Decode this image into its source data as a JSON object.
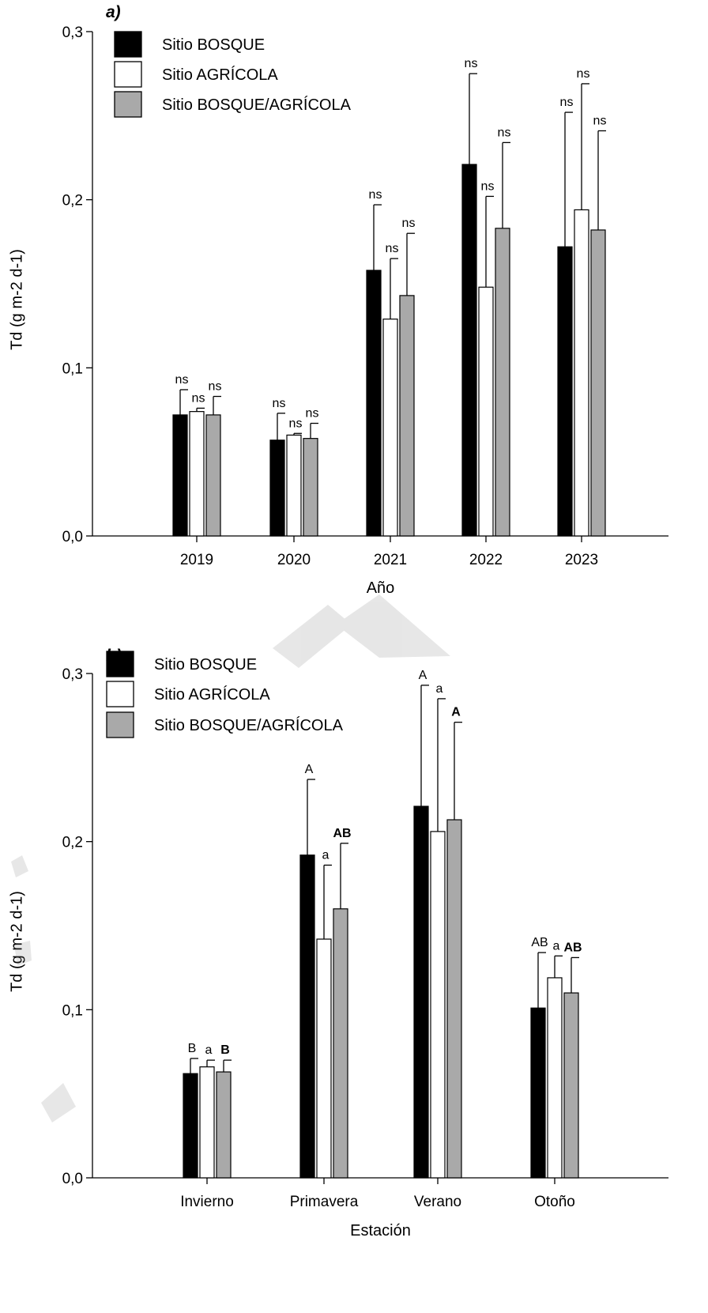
{
  "chart_data": [
    {
      "type": "bar",
      "panel": "a)",
      "xlabel": "Año",
      "ylabel": "Td (g m-2 d-1)",
      "ylim": [
        0,
        0.3
      ],
      "yticks": [
        "0,0",
        "0,1",
        "0,2",
        "0,3"
      ],
      "categories": [
        "2019",
        "2020",
        "2021",
        "2022",
        "2023"
      ],
      "legend_position": "top-left",
      "series": [
        {
          "name": "Sitio BOSQUE",
          "color": "#000000",
          "values": [
            0.072,
            0.057,
            0.158,
            0.221,
            0.172
          ],
          "errors": [
            0.015,
            0.016,
            0.039,
            0.054,
            0.08
          ],
          "annotations": [
            "ns",
            "ns",
            "ns",
            "ns",
            "ns"
          ]
        },
        {
          "name": "Sitio AGRÍCOLA",
          "color": "#ffffff",
          "values": [
            0.074,
            0.06,
            0.129,
            0.148,
            0.194
          ],
          "errors": [
            0.002,
            0.001,
            0.036,
            0.054,
            0.075
          ],
          "annotations": [
            "ns",
            "ns",
            "ns",
            "ns",
            "ns"
          ]
        },
        {
          "name": "Sitio BOSQUE/AGRÍCOLA",
          "color": "#a9a9a9",
          "values": [
            0.072,
            0.058,
            0.143,
            0.183,
            0.182
          ],
          "errors": [
            0.011,
            0.009,
            0.037,
            0.051,
            0.059
          ],
          "annotations": [
            "ns",
            "ns",
            "ns",
            "ns",
            "ns"
          ]
        }
      ]
    },
    {
      "type": "bar",
      "panel": "b)",
      "xlabel": "Estación",
      "ylabel": "Td (g m-2 d-1)",
      "ylim": [
        0,
        0.3
      ],
      "yticks": [
        "0,0",
        "0,1",
        "0,2",
        "0,3"
      ],
      "categories": [
        "Invierno",
        "Primavera",
        "Verano",
        "Otoño"
      ],
      "legend_position": "top-left",
      "series": [
        {
          "name": "Sitio BOSQUE",
          "color": "#000000",
          "values": [
            0.062,
            0.192,
            0.221,
            0.101
          ],
          "errors": [
            0.009,
            0.045,
            0.072,
            0.033
          ],
          "annotations": [
            "B",
            "A",
            "A",
            "AB"
          ],
          "annotation_bold": false
        },
        {
          "name": "Sitio AGRÍCOLA",
          "color": "#ffffff",
          "values": [
            0.066,
            0.142,
            0.206,
            0.119
          ],
          "errors": [
            0.004,
            0.044,
            0.079,
            0.013
          ],
          "annotations": [
            "a",
            "a",
            "a",
            "a"
          ],
          "annotation_bold": false
        },
        {
          "name": "Sitio BOSQUE/AGRÍCOLA",
          "color": "#a9a9a9",
          "values": [
            0.063,
            0.16,
            0.213,
            0.11
          ],
          "errors": [
            0.007,
            0.039,
            0.058,
            0.021
          ],
          "annotations": [
            "B",
            "AB",
            "A",
            "AB"
          ],
          "annotation_bold": true
        }
      ]
    }
  ]
}
